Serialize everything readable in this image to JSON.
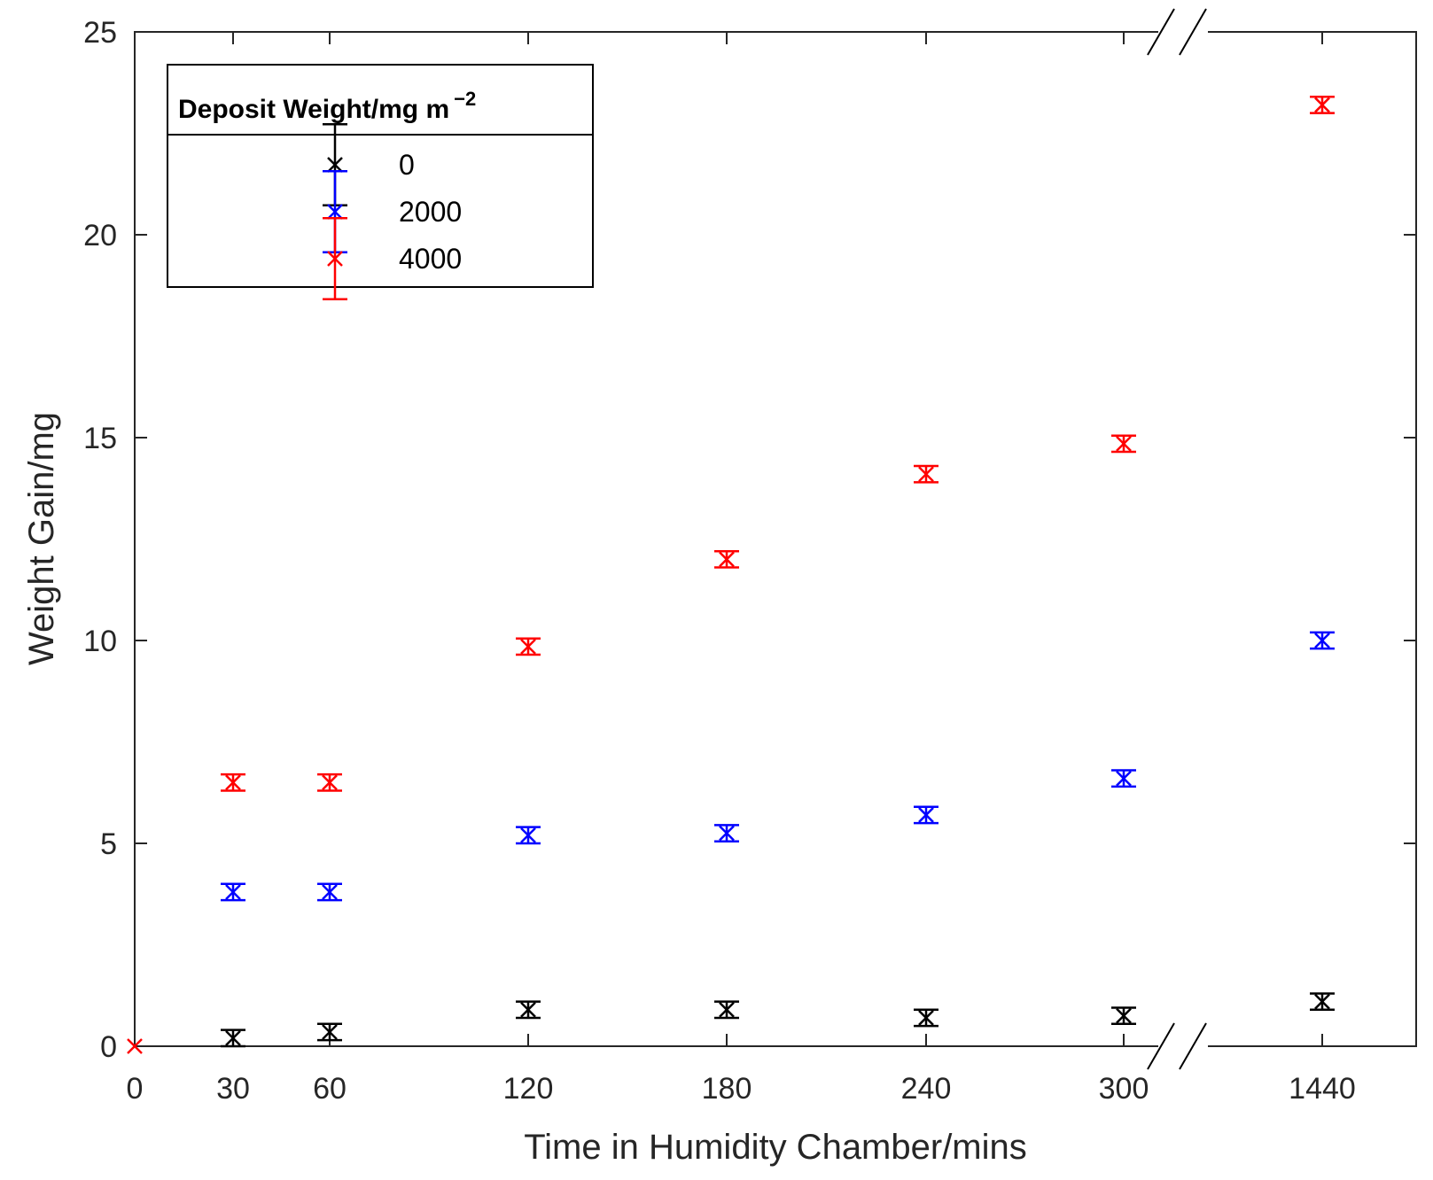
{
  "chart_data": {
    "type": "scatter",
    "title": "",
    "xlabel": "Time in Humidity Chamber/mins",
    "ylabel": "Weight Gain/mg",
    "ylim": [
      0,
      25
    ],
    "y_ticks": [
      0,
      5,
      10,
      15,
      20,
      25
    ],
    "x_categories": [
      "0",
      "30",
      "60",
      "120",
      "180",
      "240",
      "300",
      "1440"
    ],
    "axis_break": "between 300 and 1440",
    "legend": {
      "title": "Deposit Weight/mg m",
      "title_superscript": "−2",
      "placement": "top-left"
    },
    "series": [
      {
        "name": "0",
        "color": "#000000",
        "x": [
          30,
          60,
          120,
          180,
          240,
          300,
          1440
        ],
        "y": [
          0.2,
          0.35,
          0.9,
          0.9,
          0.7,
          0.75,
          1.1
        ],
        "err": [
          0.2,
          0.2,
          0.2,
          0.2,
          0.2,
          0.2,
          0.2
        ]
      },
      {
        "name": "2000",
        "color": "#0000ff",
        "x": [
          30,
          60,
          120,
          180,
          240,
          300,
          1440
        ],
        "y": [
          3.8,
          3.8,
          5.2,
          5.25,
          5.7,
          6.6,
          10.0
        ],
        "err": [
          0.2,
          0.2,
          0.2,
          0.2,
          0.2,
          0.2,
          0.2
        ]
      },
      {
        "name": "4000",
        "color": "#ff0000",
        "x": [
          0,
          30,
          60,
          120,
          180,
          240,
          300,
          1440
        ],
        "y": [
          0,
          6.5,
          6.5,
          9.85,
          12.0,
          14.1,
          14.85,
          23.2
        ],
        "err": [
          0,
          0.2,
          0.2,
          0.2,
          0.2,
          0.2,
          0.2,
          0.2
        ]
      }
    ]
  }
}
